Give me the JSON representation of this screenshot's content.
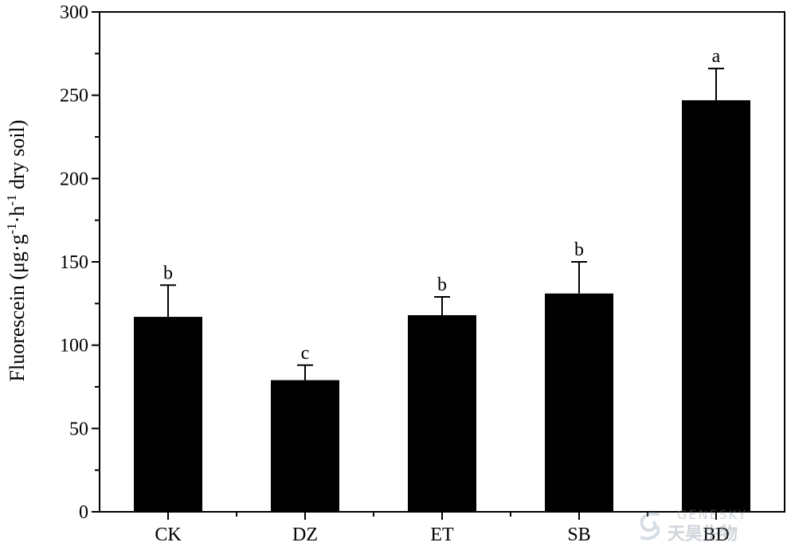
{
  "chart_data": {
    "type": "bar",
    "categories": [
      "CK",
      "DZ",
      "ET",
      "SB",
      "BD"
    ],
    "values": [
      117,
      79,
      118,
      131,
      247
    ],
    "errors": [
      19,
      9,
      11,
      19,
      19
    ],
    "significance": [
      "b",
      "c",
      "b",
      "b",
      "a"
    ],
    "ylabel": {
      "main": "Fluorescein (μg·g",
      "sup1": "-1",
      "mid": "·h",
      "sup2": "-1",
      "end": " dry soil)"
    },
    "xlabel": "",
    "ylim": [
      0,
      300
    ],
    "yticks": [
      0,
      50,
      100,
      150,
      200,
      250,
      300
    ],
    "bar_color": "#000000",
    "grid": false,
    "legend": "none"
  },
  "watermark": {
    "brand_en": "GENESKY",
    "brand_cn": "天昊生物"
  }
}
